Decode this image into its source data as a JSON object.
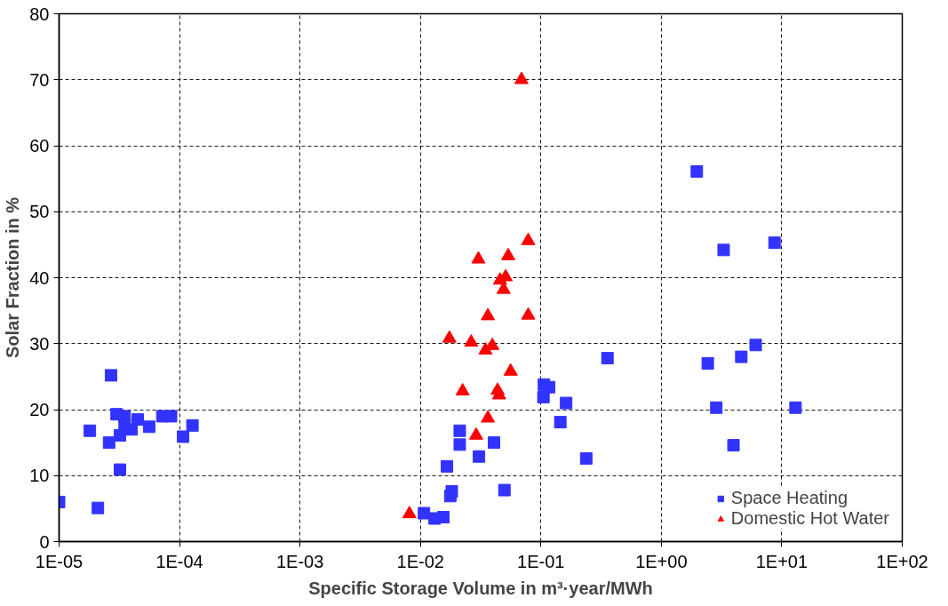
{
  "chart_data": {
    "type": "scatter",
    "xlabel": "Specific Storage Volume in m³·year/MWh",
    "ylabel": "Solar Fraction in %",
    "log": "x",
    "grid": true,
    "legend": "bottom right",
    "xlim": [
      1e-05,
      100
    ],
    "xticks": [
      {
        "value": 1e-05,
        "label": "1E-05"
      },
      {
        "value": 0.0001,
        "label": "1E-04"
      },
      {
        "value": 0.001,
        "label": "1E-03"
      },
      {
        "value": 0.01,
        "label": "1E-02"
      },
      {
        "value": 0.1,
        "label": "1E-01"
      },
      {
        "value": 1,
        "label": "1E+00"
      },
      {
        "value": 10,
        "label": "1E+01"
      },
      {
        "value": 100,
        "label": "1E+02"
      }
    ],
    "ylim": [
      0,
      80
    ],
    "yticks": [
      0,
      10,
      20,
      30,
      40,
      50,
      60,
      70,
      80
    ],
    "series": [
      {
        "name": "Space Heating",
        "color": "#3333ff",
        "marker": "square",
        "x": [
          1e-05,
          2.1e-05,
          1.8e-05,
          2.7e-05,
          2.6e-05,
          3.2e-05,
          3e-05,
          3.5e-05,
          3.2e-05,
          3.5e-05,
          4e-05,
          4.5e-05,
          5.6e-05,
          7.2e-05,
          8.5e-05,
          0.000107,
          0.000128,
          0.0212,
          0.0212,
          0.0408,
          0.0306,
          0.0166,
          0.0182,
          0.0177,
          0.0498,
          0.0107,
          0.0131,
          0.0155,
          0.106,
          0.117,
          0.105,
          1.97,
          3.29,
          8.7,
          6.07,
          4.61,
          2.43,
          0.357,
          0.162,
          0.145,
          0.238,
          2.86,
          13.0,
          3.97
        ],
        "values": [
          6.0,
          5.1,
          16.8,
          25.2,
          15.0,
          10.9,
          19.3,
          19.0,
          16.1,
          17.8,
          17.0,
          18.5,
          17.4,
          19.0,
          19.0,
          15.9,
          17.6,
          16.8,
          14.7,
          15.0,
          12.9,
          11.4,
          7.6,
          6.9,
          7.8,
          4.3,
          3.5,
          3.7,
          23.8,
          23.4,
          21.9,
          56.1,
          44.2,
          45.3,
          29.8,
          28.0,
          27.0,
          27.8,
          21.0,
          18.1,
          12.6,
          20.3,
          20.3,
          14.6
        ]
      },
      {
        "name": "Domestic Hot Water",
        "color": "#ff0000",
        "marker": "triangle",
        "x": [
          0.069,
          0.0785,
          0.0303,
          0.0535,
          0.0458,
          0.051,
          0.049,
          0.0363,
          0.0785,
          0.0174,
          0.0264,
          0.0395,
          0.0347,
          0.0561,
          0.0224,
          0.0437,
          0.045,
          0.0363,
          0.029,
          0.0081
        ],
        "values": [
          70.0,
          45.6,
          42.8,
          43.3,
          39.6,
          40.1,
          38.2,
          34.2,
          34.3,
          30.8,
          30.2,
          29.7,
          29.0,
          25.8,
          22.8,
          22.9,
          22.2,
          18.7,
          16.1,
          4.2
        ]
      }
    ]
  }
}
